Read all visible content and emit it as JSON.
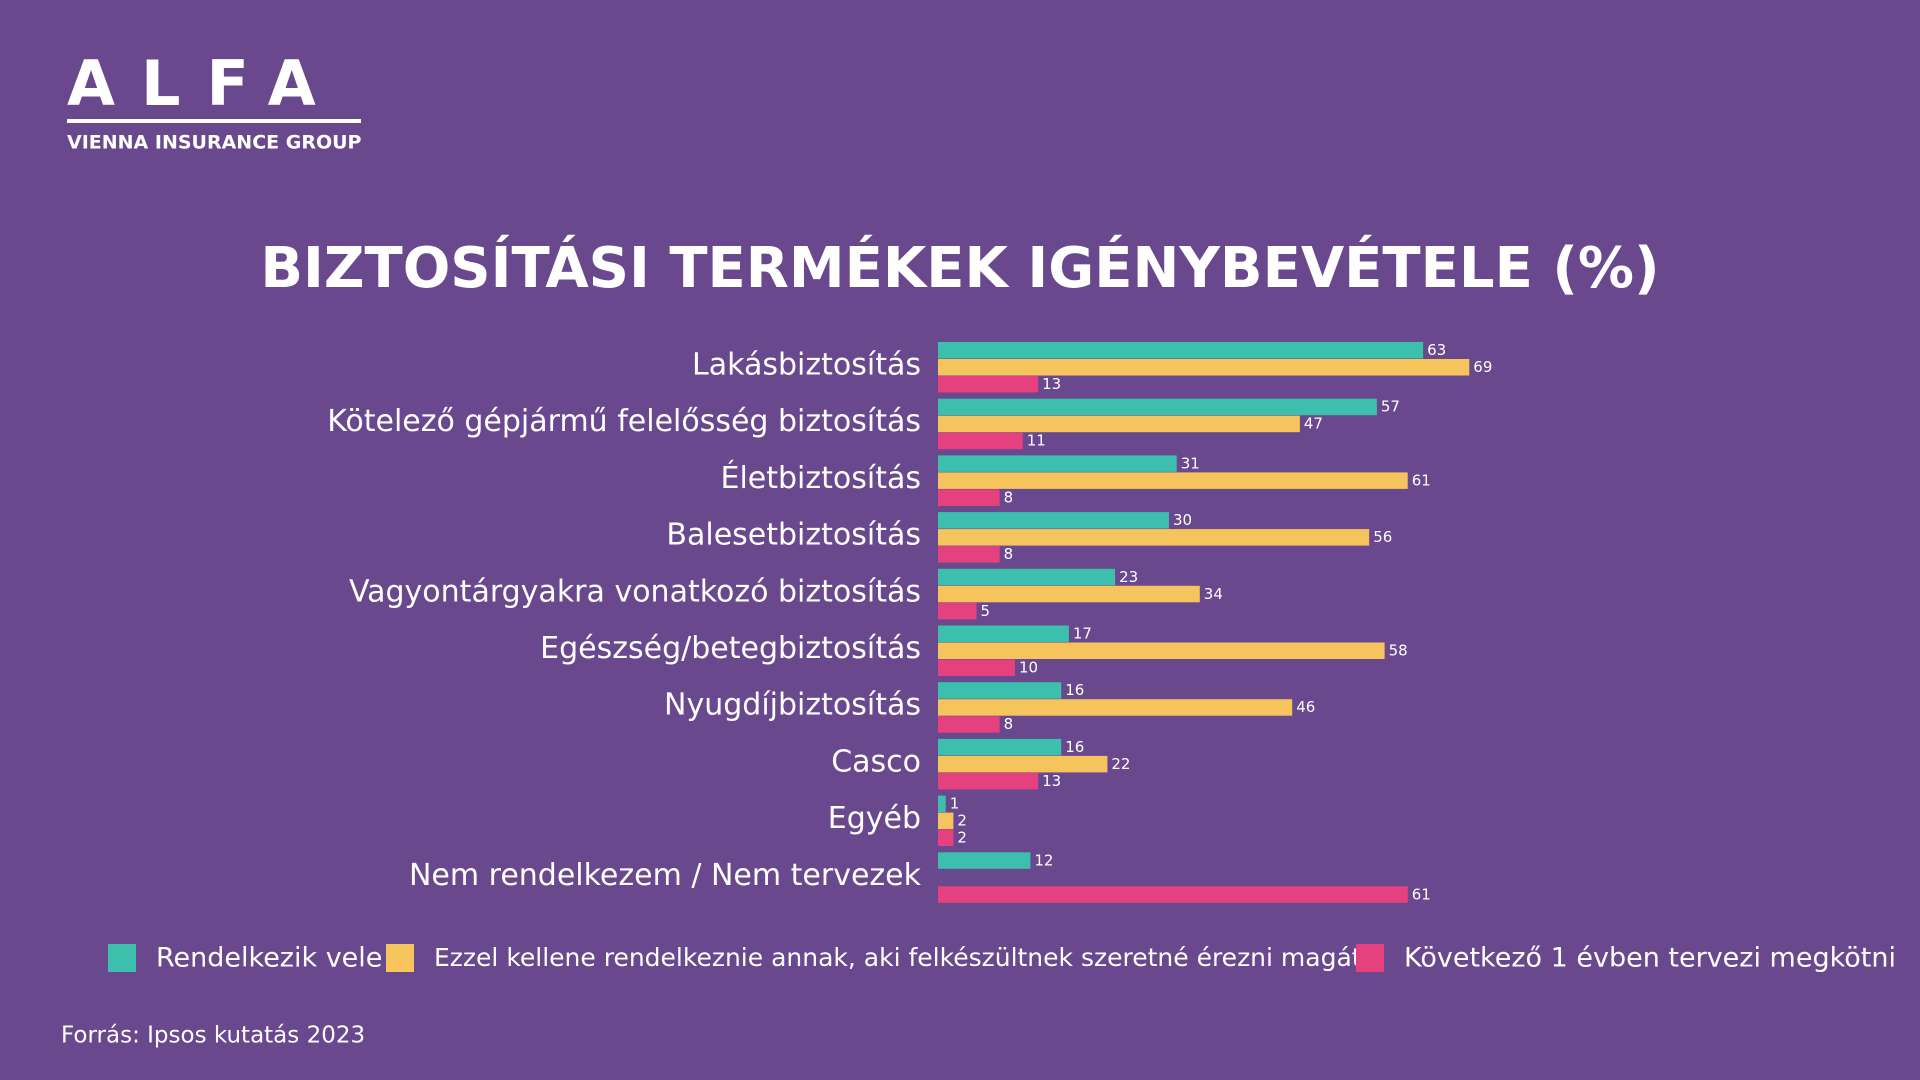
{
  "logo": {
    "name": "ALFA",
    "subtitle": "VIENNA INSURANCE GROUP"
  },
  "chart_data": {
    "type": "hbar",
    "title": "BIZTOSÍTÁSI TERMÉKEK IGÉNYBEVÉTELE (%)",
    "categories": [
      "Lakásbiztosítás",
      "Kötelező gépjármű felelősség biztosítás",
      "Életbiztosítás",
      "Balesetbiztosítás",
      "Vagyontárgyakra vonatkozó biztosítás",
      "Egészség/betegbiztosítás",
      "Nyugdíjbiztosítás",
      "Casco",
      "Egyéb",
      "Nem rendelkezem / Nem tervezek"
    ],
    "series": [
      {
        "name": "Rendelkezik vele",
        "color": "#3dbfae",
        "values": [
          63,
          57,
          31,
          30,
          23,
          17,
          16,
          16,
          1,
          12
        ]
      },
      {
        "name": "Ezzel kellene rendelkeznie annak, aki felkészültnek szeretné érezni magát",
        "color": "#f5c45c",
        "values": [
          69,
          47,
          61,
          56,
          34,
          58,
          46,
          22,
          2,
          null
        ]
      },
      {
        "name": "Következő 1 évben tervezi megkötni",
        "color": "#e6417f",
        "values": [
          13,
          11,
          8,
          8,
          5,
          10,
          8,
          13,
          2,
          61
        ]
      }
    ],
    "source": "Forrás: Ipsos kutatás 2023"
  }
}
